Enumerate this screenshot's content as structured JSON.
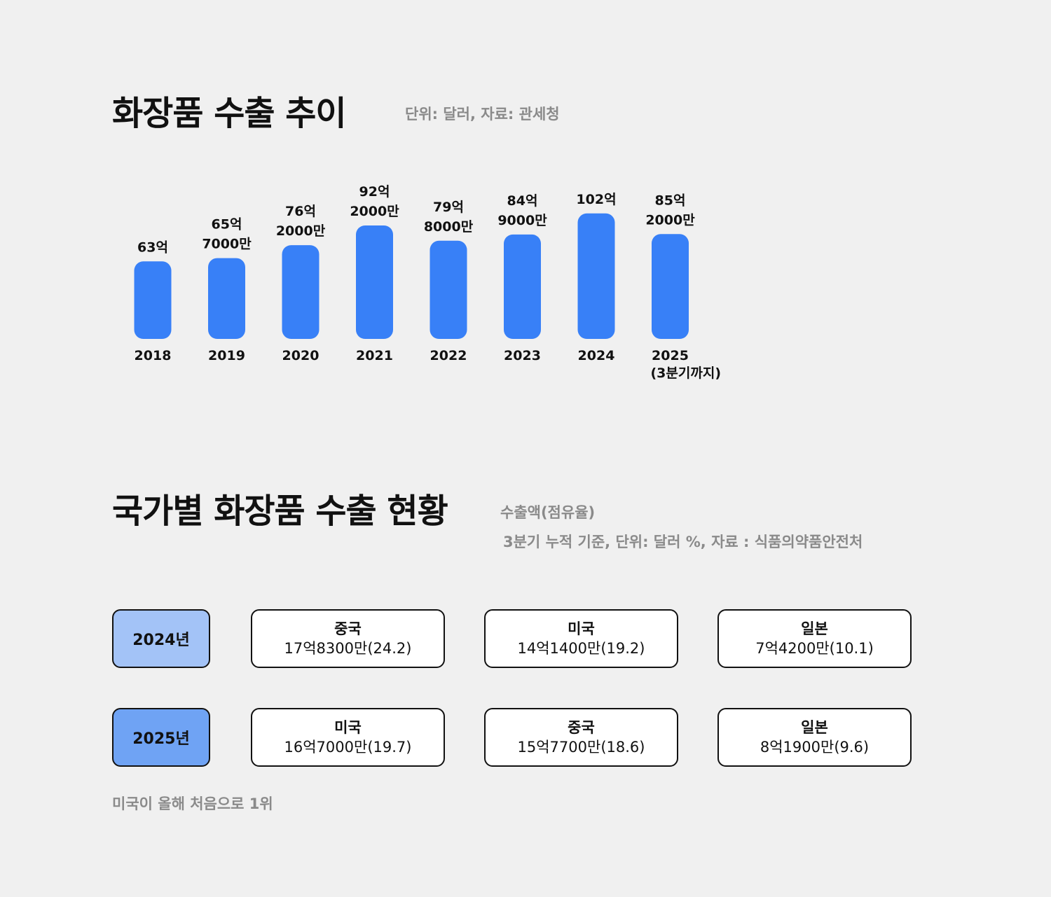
{
  "trend": {
    "title": "화장품 수출 추이",
    "note": "단위: 달러, 자료: 관세청"
  },
  "chart_data": {
    "type": "bar",
    "title": "화장품 수출 추이",
    "subtitle": "단위: 달러, 자료: 관세청",
    "categories": [
      "2018",
      "2019",
      "2020",
      "2021",
      "2022",
      "2023",
      "2024",
      "2025"
    ],
    "category_labels": [
      [
        "2018"
      ],
      [
        "2019"
      ],
      [
        "2020"
      ],
      [
        "2021"
      ],
      [
        "2022"
      ],
      [
        "2023"
      ],
      [
        "2024"
      ],
      [
        "2025",
        "(3분기까지)"
      ]
    ],
    "values": [
      63,
      65.7,
      76.2,
      92.2,
      79.8,
      84.9,
      102,
      85.2
    ],
    "value_unit": "억 달러",
    "data_labels": [
      [
        "63억"
      ],
      [
        "65억",
        "7000만"
      ],
      [
        "76억",
        "2000만"
      ],
      [
        "92억",
        "2000만"
      ],
      [
        "79억",
        "8000만"
      ],
      [
        "84억",
        "9000만"
      ],
      [
        "102억"
      ],
      [
        "85억",
        "2000만"
      ]
    ],
    "bar_color": "#3880f7",
    "grid": false,
    "axes_visible": false
  },
  "country": {
    "title": "국가별 화장품 수출 현황",
    "note_line1": "수출액(점유율)",
    "note_line2": "3분기 누적 기준, 단위: 달러 %, 자료 : 식품의약품안전처",
    "footnote": "미국이 올해 처음으로 1위",
    "rows": [
      {
        "year": "2024년",
        "color": "#a3c3f7",
        "items": [
          {
            "name": "중국",
            "value": "17억8300만(24.2)"
          },
          {
            "name": "미국",
            "value": "14억1400만(19.2)"
          },
          {
            "name": "일본",
            "value": "7억4200만(10.1)"
          }
        ]
      },
      {
        "year": "2025년",
        "color": "#6fa3f4",
        "items": [
          {
            "name": "미국",
            "value": "16억7000만(19.7)"
          },
          {
            "name": "중국",
            "value": "15억7700만(18.6)"
          },
          {
            "name": "일본",
            "value": "8억1900만(9.6)"
          }
        ]
      }
    ]
  }
}
